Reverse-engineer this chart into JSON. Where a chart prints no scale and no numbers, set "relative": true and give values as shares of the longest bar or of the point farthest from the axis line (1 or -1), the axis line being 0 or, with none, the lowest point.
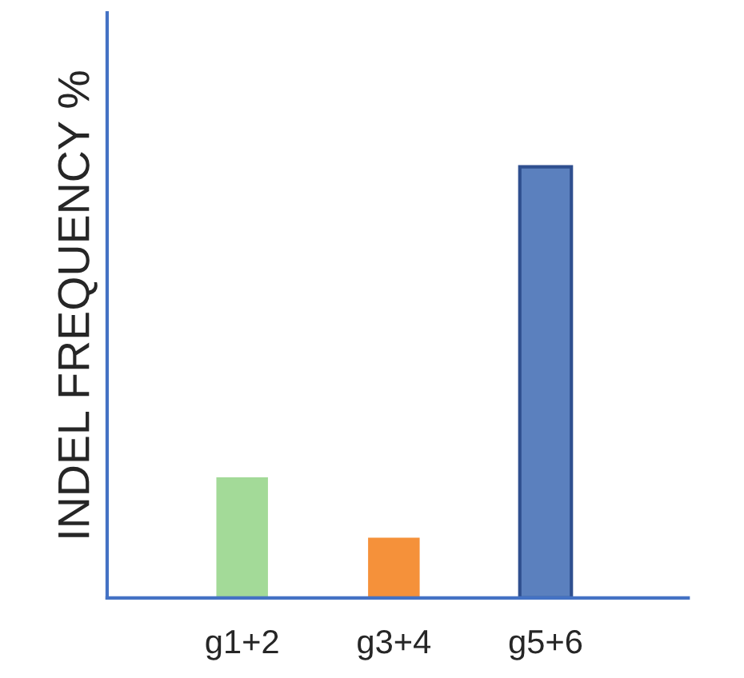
{
  "chart_data": {
    "type": "bar",
    "relative": true,
    "ylabel": "INDEL FREQUENCY %",
    "categories": [
      "g1+2",
      "g3+4",
      "g5+6"
    ],
    "values": [
      0.28,
      0.14,
      1
    ],
    "colors": [
      "#a3da98",
      "#f5913a",
      "#5b80be"
    ],
    "grid": false,
    "legend": false
  }
}
